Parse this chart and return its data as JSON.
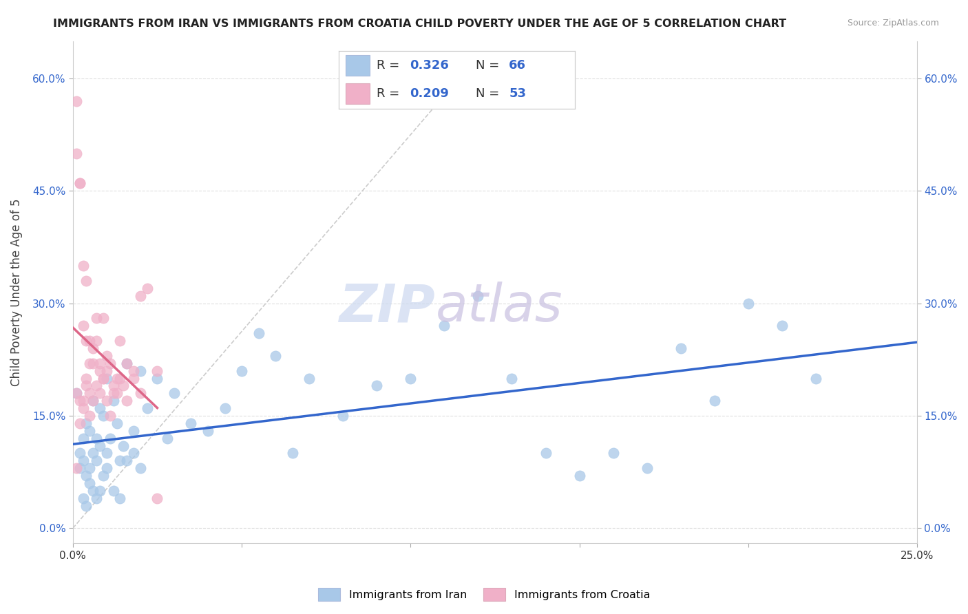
{
  "title": "IMMIGRANTS FROM IRAN VS IMMIGRANTS FROM CROATIA CHILD POVERTY UNDER THE AGE OF 5 CORRELATION CHART",
  "source": "Source: ZipAtlas.com",
  "ylabel": "Child Poverty Under the Age of 5",
  "xlim": [
    0,
    0.25
  ],
  "ylim": [
    -0.02,
    0.65
  ],
  "ytick_values": [
    0.0,
    0.15,
    0.3,
    0.45,
    0.6
  ],
  "ytick_labels": [
    "0.0%",
    "15.0%",
    "30.0%",
    "45.0%",
    "60.0%"
  ],
  "xtick_values": [
    0.0,
    0.05,
    0.1,
    0.15,
    0.2,
    0.25
  ],
  "xtick_labels": [
    "0.0%",
    "",
    "",
    "",
    "",
    "25.0%"
  ],
  "iran_R": 0.326,
  "iran_N": 66,
  "croatia_R": 0.209,
  "croatia_N": 53,
  "iran_color": "#a8c8e8",
  "croatia_color": "#f0b0c8",
  "iran_line_color": "#3366cc",
  "croatia_line_color": "#dd6688",
  "legend_text_color": "#3366cc",
  "background_color": "#ffffff",
  "grid_color": "#dddddd",
  "ref_line_color": "#cccccc",
  "iran_x": [
    0.001,
    0.002,
    0.002,
    0.003,
    0.003,
    0.004,
    0.004,
    0.005,
    0.005,
    0.006,
    0.006,
    0.007,
    0.007,
    0.008,
    0.008,
    0.009,
    0.01,
    0.01,
    0.011,
    0.012,
    0.013,
    0.014,
    0.015,
    0.016,
    0.018,
    0.02,
    0.022,
    0.025,
    0.028,
    0.03,
    0.035,
    0.04,
    0.045,
    0.05,
    0.055,
    0.06,
    0.065,
    0.07,
    0.08,
    0.09,
    0.1,
    0.11,
    0.12,
    0.13,
    0.14,
    0.15,
    0.16,
    0.17,
    0.18,
    0.19,
    0.2,
    0.21,
    0.22,
    0.003,
    0.004,
    0.005,
    0.006,
    0.007,
    0.008,
    0.009,
    0.01,
    0.012,
    0.014,
    0.016,
    0.018,
    0.02
  ],
  "iran_y": [
    0.18,
    0.1,
    0.08,
    0.12,
    0.09,
    0.14,
    0.07,
    0.08,
    0.13,
    0.1,
    0.17,
    0.12,
    0.09,
    0.16,
    0.11,
    0.15,
    0.1,
    0.2,
    0.12,
    0.17,
    0.14,
    0.09,
    0.11,
    0.22,
    0.13,
    0.21,
    0.16,
    0.2,
    0.12,
    0.18,
    0.14,
    0.13,
    0.16,
    0.21,
    0.26,
    0.23,
    0.1,
    0.2,
    0.15,
    0.19,
    0.2,
    0.27,
    0.31,
    0.2,
    0.1,
    0.07,
    0.1,
    0.08,
    0.24,
    0.17,
    0.3,
    0.27,
    0.2,
    0.04,
    0.03,
    0.06,
    0.05,
    0.04,
    0.05,
    0.07,
    0.08,
    0.05,
    0.04,
    0.09,
    0.1,
    0.08
  ],
  "croatia_x": [
    0.001,
    0.001,
    0.002,
    0.002,
    0.003,
    0.003,
    0.004,
    0.004,
    0.005,
    0.005,
    0.006,
    0.006,
    0.007,
    0.007,
    0.008,
    0.008,
    0.009,
    0.009,
    0.01,
    0.01,
    0.011,
    0.012,
    0.013,
    0.014,
    0.015,
    0.016,
    0.018,
    0.02,
    0.022,
    0.025,
    0.001,
    0.001,
    0.002,
    0.002,
    0.003,
    0.003,
    0.004,
    0.004,
    0.005,
    0.005,
    0.006,
    0.007,
    0.008,
    0.009,
    0.01,
    0.011,
    0.012,
    0.013,
    0.014,
    0.016,
    0.018,
    0.02,
    0.025
  ],
  "croatia_y": [
    0.57,
    0.5,
    0.46,
    0.46,
    0.35,
    0.27,
    0.25,
    0.33,
    0.25,
    0.22,
    0.24,
    0.22,
    0.28,
    0.25,
    0.21,
    0.22,
    0.28,
    0.2,
    0.23,
    0.21,
    0.22,
    0.18,
    0.2,
    0.25,
    0.19,
    0.22,
    0.2,
    0.31,
    0.32,
    0.21,
    0.18,
    0.08,
    0.17,
    0.14,
    0.17,
    0.16,
    0.2,
    0.19,
    0.18,
    0.15,
    0.17,
    0.19,
    0.18,
    0.2,
    0.17,
    0.15,
    0.19,
    0.18,
    0.2,
    0.17,
    0.21,
    0.18,
    0.04
  ]
}
